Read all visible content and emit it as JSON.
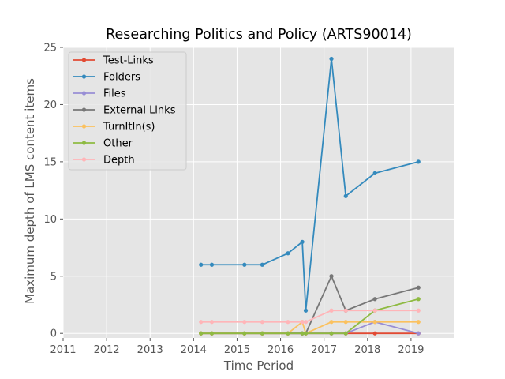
{
  "chart_data": {
    "type": "line",
    "title": "Researching Politics and Policy (ARTS90014)",
    "xlabel": "Time Period",
    "ylabel": "Maximum depth of LMS content items",
    "xlim": [
      2011,
      2020
    ],
    "ylim": [
      -0.4,
      25
    ],
    "xticks": [
      2011,
      2012,
      2013,
      2014,
      2015,
      2016,
      2017,
      2018,
      2019
    ],
    "yticks": [
      0,
      5,
      10,
      15,
      20,
      25
    ],
    "grid": true,
    "legend_position": "top-left",
    "x": [
      2014.17,
      2014.42,
      2015.17,
      2015.58,
      2016.17,
      2016.5,
      2016.58,
      2017.17,
      2017.5,
      2018.17,
      2019.17
    ],
    "series": [
      {
        "name": "Test-Links",
        "color": "#e24a33",
        "values": [
          0,
          0,
          0,
          0,
          0,
          0,
          0,
          0,
          0,
          0,
          0
        ]
      },
      {
        "name": "Folders",
        "color": "#348abd",
        "values": [
          6,
          6,
          6,
          6,
          7,
          8,
          2,
          24,
          12,
          14,
          15
        ]
      },
      {
        "name": "Files",
        "color": "#988ed5",
        "values": [
          0,
          0,
          0,
          0,
          0,
          0,
          0,
          0,
          0,
          1,
          0
        ]
      },
      {
        "name": "External Links",
        "color": "#777777",
        "values": [
          0,
          0,
          0,
          0,
          0,
          0,
          0,
          5,
          2,
          3,
          4
        ]
      },
      {
        "name": "TurnItIn(s)",
        "color": "#fbc15e",
        "values": [
          0,
          0,
          0,
          0,
          0,
          1,
          0,
          1,
          1,
          1,
          1
        ]
      },
      {
        "name": "Other",
        "color": "#8eba42",
        "values": [
          0,
          0,
          0,
          0,
          0,
          0,
          0,
          0,
          0,
          2,
          3
        ]
      },
      {
        "name": "Depth",
        "color": "#ffb5b8",
        "values": [
          1,
          1,
          1,
          1,
          1,
          1,
          1,
          2,
          2,
          2,
          2
        ]
      }
    ]
  }
}
